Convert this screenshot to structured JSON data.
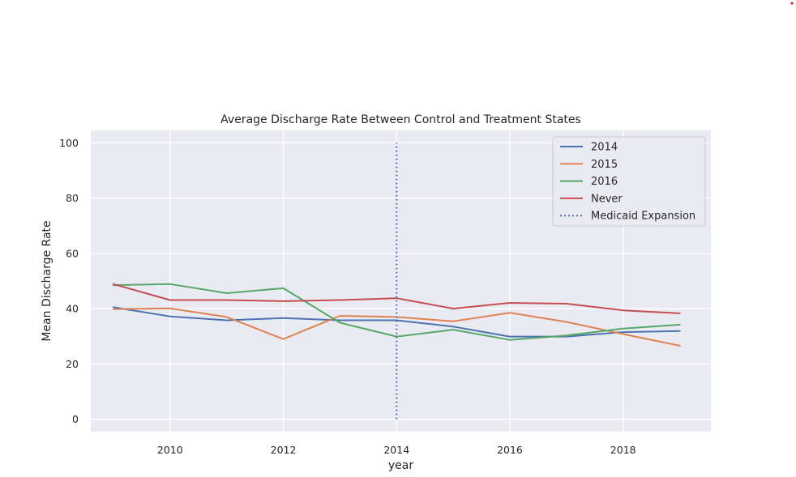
{
  "chart_data": {
    "type": "line",
    "title": "Average Discharge Rate Between Control and Treatment States",
    "xlabel": "year",
    "ylabel": "Mean Discharge Rate",
    "xlim": [
      2008.6,
      2019.55
    ],
    "ylim": [
      -4.5,
      104.5
    ],
    "xticks": [
      2010,
      2012,
      2014,
      2016,
      2018
    ],
    "yticks": [
      0,
      20,
      40,
      60,
      80,
      100
    ],
    "grid": true,
    "legend_position": "top-right",
    "x": [
      2009,
      2010,
      2011,
      2012,
      2013,
      2014,
      2015,
      2016,
      2017,
      2018,
      2019
    ],
    "series": [
      {
        "name": "2014",
        "color": "#4c72b0",
        "values": [
          40.5,
          37.2,
          35.8,
          36.6,
          35.8,
          35.8,
          33.5,
          29.9,
          29.9,
          31.5,
          31.9
        ]
      },
      {
        "name": "2015",
        "color": "#dd8452",
        "values": [
          39.8,
          40.1,
          37.0,
          29.0,
          37.4,
          37.0,
          35.4,
          38.5,
          35.2,
          30.8,
          26.6
        ]
      },
      {
        "name": "2016",
        "color": "#55a868",
        "values": [
          48.5,
          48.9,
          45.6,
          47.4,
          34.9,
          29.9,
          32.4,
          28.7,
          30.3,
          32.8,
          34.2
        ]
      },
      {
        "name": "Never",
        "color": "#c44e52",
        "values": [
          48.9,
          43.1,
          43.1,
          42.7,
          43.1,
          43.8,
          40.0,
          42.1,
          41.8,
          39.4,
          38.3
        ]
      }
    ],
    "vline": {
      "name": "Medicaid Expansion",
      "x": 2014,
      "y_range": [
        0,
        100
      ],
      "color": "#4c72b0",
      "style": "dotted"
    }
  }
}
